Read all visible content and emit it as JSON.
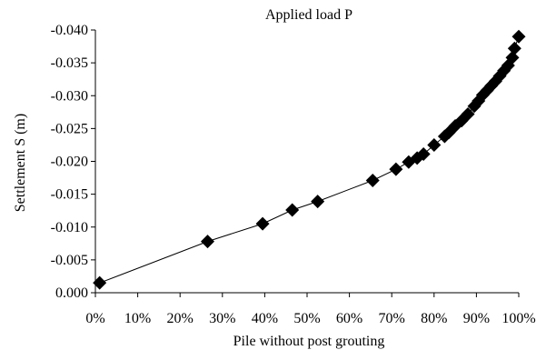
{
  "chart_data": {
    "type": "line",
    "title": "Applied load P",
    "xlabel": "Pile without post grouting",
    "ylabel": "Settlement S (m)",
    "x_tick_labels": [
      "0%",
      "10%",
      "20%",
      "30%",
      "40%",
      "50%",
      "60%",
      "70%",
      "80%",
      "90%",
      "100%"
    ],
    "y_tick_labels": [
      "0.000",
      "-0.005",
      "-0.010",
      "-0.015",
      "-0.020",
      "-0.025",
      "-0.030",
      "-0.035",
      "-0.040"
    ],
    "xlim": [
      0,
      100
    ],
    "ylim": [
      0,
      -0.04
    ],
    "y_axis_inverted": true,
    "grid": false,
    "marker": "diamond",
    "marker_color": "#000000",
    "line_color": "#000000",
    "series": [
      {
        "x": [
          1,
          26.5,
          39.5,
          46.5,
          52.5,
          65.5,
          71,
          74,
          76,
          77.5,
          80,
          82.5,
          83.5,
          85,
          86.5,
          88,
          89.5,
          90.5,
          91.5,
          92.5,
          93.5,
          94.5,
          95.5,
          96.5,
          97.5,
          98.5,
          99,
          100
        ],
        "y": [
          -0.0015,
          -0.0078,
          -0.0105,
          -0.0126,
          -0.0139,
          -0.0171,
          -0.0188,
          -0.0199,
          -0.0205,
          -0.0211,
          -0.0225,
          -0.0238,
          -0.0244,
          -0.0254,
          -0.0262,
          -0.0272,
          -0.0284,
          -0.0292,
          -0.0301,
          -0.0308,
          -0.0315,
          -0.0322,
          -0.033,
          -0.0338,
          -0.0346,
          -0.0358,
          -0.0372,
          -0.039
        ]
      }
    ]
  }
}
